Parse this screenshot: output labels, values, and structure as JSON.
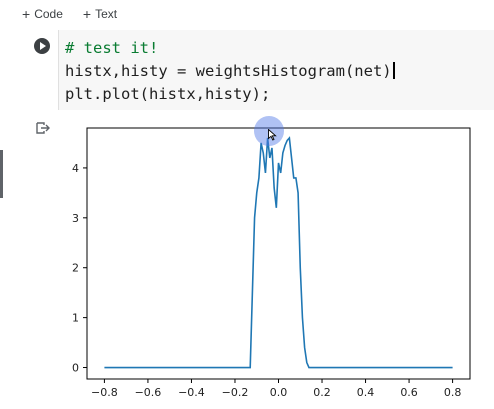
{
  "toolbar": {
    "code_label": "Code",
    "text_label": "Text",
    "plus_icon": "plus-icon"
  },
  "cell": {
    "run_icon": "play-circle-icon",
    "lines": [
      "# test it!",
      "histx,histy = weightsHistogram(net)",
      "plt.plot(histx,histy);"
    ]
  },
  "output": {
    "icon": "output-redirect-icon"
  },
  "colors": {
    "line": "#1f77b4",
    "comment": "#0a7c32",
    "editor_bg": "#f7f7f7"
  },
  "chart_data": {
    "type": "line",
    "title": "",
    "xlabel": "",
    "ylabel": "",
    "xlim": [
      -0.88,
      0.88
    ],
    "ylim": [
      -0.23,
      4.8
    ],
    "xticks": [
      -0.8,
      -0.6,
      -0.4,
      -0.2,
      0.0,
      0.2,
      0.4,
      0.6,
      0.8
    ],
    "xtick_labels": [
      "−0.8",
      "−0.6",
      "−0.4",
      "−0.2",
      "0.0",
      "0.2",
      "0.4",
      "0.6",
      "0.8"
    ],
    "yticks": [
      0,
      1,
      2,
      3,
      4
    ],
    "ytick_labels": [
      "0",
      "1",
      "2",
      "3",
      "4"
    ],
    "grid": false,
    "x": [
      -0.8,
      -0.13,
      -0.11,
      -0.1,
      -0.09,
      -0.08,
      -0.07,
      -0.06,
      -0.05,
      -0.04,
      -0.03,
      -0.02,
      -0.01,
      0.0,
      0.01,
      0.02,
      0.03,
      0.04,
      0.05,
      0.06,
      0.07,
      0.08,
      0.09,
      0.1,
      0.11,
      0.12,
      0.13,
      0.14,
      0.8
    ],
    "y": [
      0,
      0,
      3.0,
      3.5,
      3.8,
      4.5,
      4.3,
      3.9,
      4.6,
      4.2,
      4.4,
      3.6,
      3.2,
      4.1,
      3.9,
      4.3,
      4.45,
      4.55,
      4.6,
      4.2,
      3.8,
      3.8,
      3.5,
      2.0,
      1.0,
      0.4,
      0.1,
      0,
      0
    ]
  }
}
